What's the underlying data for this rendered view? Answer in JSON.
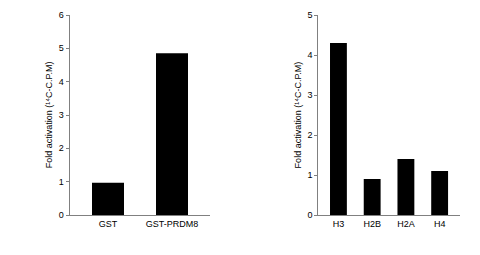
{
  "chart_data": [
    {
      "type": "bar",
      "y_label": "Fold activation (¹⁴C-C.P.M)",
      "categories": [
        "GST",
        "GST-PRDM8"
      ],
      "values": [
        0.97,
        4.85
      ],
      "color": "#000000",
      "ylim": [
        0,
        6
      ],
      "yticks": [
        0,
        1,
        2,
        3,
        4,
        5,
        6
      ],
      "grid": false
    },
    {
      "type": "bar",
      "y_label": "Fold activation (¹⁴C-C.P.M)",
      "categories": [
        "H3",
        "H2B",
        "H2A",
        "H4"
      ],
      "values": [
        4.3,
        0.9,
        1.4,
        1.1
      ],
      "color": "#000000",
      "ylim": [
        0,
        5
      ],
      "yticks": [
        0,
        1,
        2,
        3,
        4,
        5
      ],
      "grid": false
    }
  ]
}
